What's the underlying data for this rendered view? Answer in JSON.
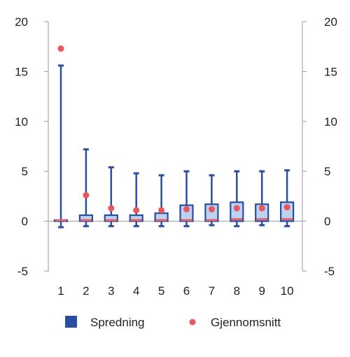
{
  "chart_data": {
    "type": "box",
    "categories": [
      "1",
      "2",
      "3",
      "4",
      "5",
      "6",
      "7",
      "8",
      "9",
      "10"
    ],
    "ylim": [
      -5,
      20
    ],
    "yticks": [
      "20",
      "15",
      "10",
      "5",
      "0",
      "-5"
    ],
    "ytick_values": [
      20,
      15,
      10,
      5,
      0,
      -5
    ],
    "series": [
      {
        "name": "Spredning",
        "boxes": [
          {
            "min": -0.6,
            "q1": 0.0,
            "median": 0.1,
            "q3": 0.1,
            "max": 15.6
          },
          {
            "min": -0.5,
            "q1": 0.0,
            "median": 0.1,
            "q3": 0.6,
            "max": 7.2
          },
          {
            "min": -0.5,
            "q1": 0.0,
            "median": 0.1,
            "q3": 0.6,
            "max": 5.4
          },
          {
            "min": -0.5,
            "q1": 0.0,
            "median": 0.1,
            "q3": 0.6,
            "max": 4.8
          },
          {
            "min": -0.5,
            "q1": 0.0,
            "median": 0.1,
            "q3": 0.8,
            "max": 4.6
          },
          {
            "min": -0.5,
            "q1": 0.0,
            "median": 0.1,
            "q3": 1.6,
            "max": 5.0
          },
          {
            "min": -0.4,
            "q1": 0.0,
            "median": 0.1,
            "q3": 1.7,
            "max": 4.6
          },
          {
            "min": -0.5,
            "q1": 0.0,
            "median": 0.2,
            "q3": 1.9,
            "max": 5.0
          },
          {
            "min": -0.4,
            "q1": 0.0,
            "median": 0.2,
            "q3": 1.7,
            "max": 5.0
          },
          {
            "min": -0.5,
            "q1": 0.0,
            "median": 0.2,
            "q3": 1.9,
            "max": 5.1
          }
        ]
      },
      {
        "name": "Gjennomsnitt",
        "values": [
          17.3,
          2.6,
          1.3,
          1.1,
          1.1,
          1.2,
          1.2,
          1.3,
          1.3,
          1.4
        ]
      }
    ],
    "legend_position": "bottom",
    "grid": false,
    "colors": {
      "box_stroke": "#2a4ea0",
      "box_fill": "#bcd2ee",
      "median": "#e8636a",
      "mean_dot": "#e8575f",
      "axis": "#9a9a9a"
    }
  }
}
